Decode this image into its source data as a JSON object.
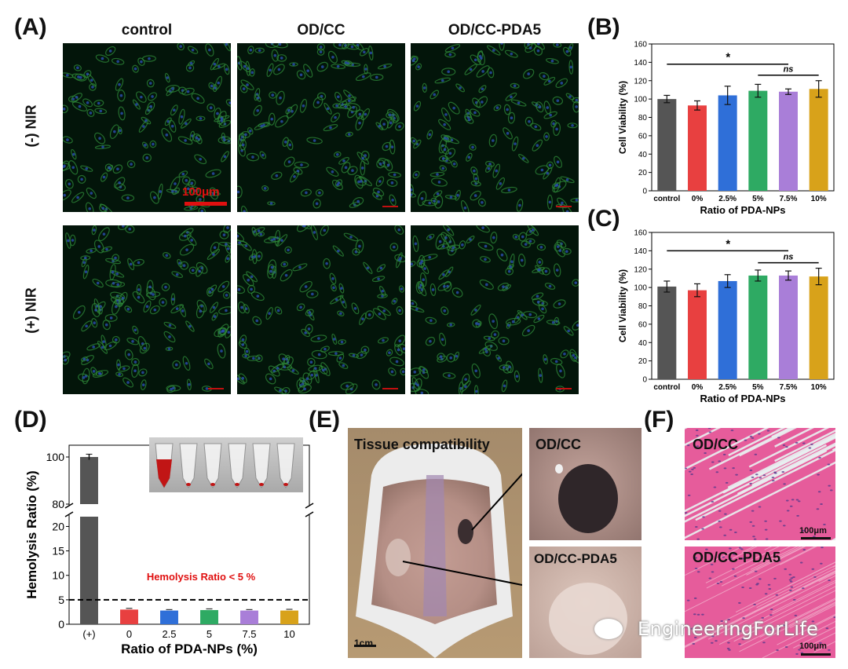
{
  "panels": {
    "A": "(A)",
    "B": "(B)",
    "C": "(C)",
    "D": "(D)",
    "E": "(E)",
    "F": "(F)"
  },
  "panel_a": {
    "columns": [
      "control",
      "OD/CC",
      "OD/CC-PDA5"
    ],
    "rows": [
      "(-) NIR",
      "(+) NIR"
    ],
    "scale_bar": "100μm"
  },
  "panel_e": {
    "title": "Tissue compatibility",
    "inset_top": "OD/CC",
    "inset_bottom": "OD/CC-PDA5",
    "scale_bar": "1cm"
  },
  "panel_f": {
    "top_label": "OD/CC",
    "bottom_label": "OD/CC-PDA5",
    "scale_top": "100μm",
    "scale_bottom": "100μm"
  },
  "watermark": "EngineeringForLife",
  "colors": {
    "control": "#555555",
    "p0": "#e84040",
    "p2_5": "#2f6fd8",
    "p5": "#2eaa63",
    "p7_5": "#a97ed8",
    "p10": "#d8a21a"
  },
  "chart_data": [
    {
      "id": "B",
      "type": "bar",
      "categories": [
        "control",
        "0%",
        "2.5%",
        "5%",
        "7.5%",
        "10%"
      ],
      "values": [
        100,
        93,
        104,
        109,
        108,
        111
      ],
      "errors": [
        4,
        5,
        10,
        7,
        3,
        9
      ],
      "ylabel": "Cell Viability (%)",
      "xlabel": "Ratio of PDA-NPs",
      "ylim": [
        0,
        160
      ],
      "yticks": [
        0,
        20,
        40,
        60,
        80,
        100,
        120,
        140,
        160
      ],
      "annotations": [
        {
          "text": "*",
          "from": 0,
          "to": 4,
          "y": 138
        },
        {
          "text": "ns",
          "from": 3,
          "to": 5,
          "y": 126
        }
      ]
    },
    {
      "id": "C",
      "type": "bar",
      "categories": [
        "control",
        "0%",
        "2.5%",
        "5%",
        "7.5%",
        "10%"
      ],
      "values": [
        101,
        97,
        107,
        113,
        113,
        112
      ],
      "errors": [
        6,
        7,
        7,
        6,
        5,
        9
      ],
      "ylabel": "Cell Viability (%)",
      "xlabel": "Ratio of PDA-NPs",
      "ylim": [
        0,
        160
      ],
      "yticks": [
        0,
        20,
        40,
        60,
        80,
        100,
        120,
        140,
        160
      ],
      "annotations": [
        {
          "text": "*",
          "from": 0,
          "to": 4,
          "y": 140
        },
        {
          "text": "ns",
          "from": 3,
          "to": 5,
          "y": 127
        }
      ]
    },
    {
      "id": "D",
      "type": "bar",
      "categories": [
        "(+)",
        "0",
        "2.5",
        "5",
        "7.5",
        "10"
      ],
      "values": [
        100,
        3.0,
        2.8,
        2.9,
        2.8,
        2.8
      ],
      "errors": [
        1.2,
        0.25,
        0.2,
        0.25,
        0.2,
        0.25
      ],
      "ylabel": "Hemolysis Ratio (%)",
      "xlabel": "Ratio of PDA-NPs (%)",
      "axis_break": [
        22,
        80
      ],
      "lower_yticks": [
        0,
        5,
        10,
        15,
        20
      ],
      "upper_yticks": [
        80,
        100
      ],
      "threshold": 5,
      "threshold_label": "Hemolysis Ratio < 5 %"
    }
  ]
}
